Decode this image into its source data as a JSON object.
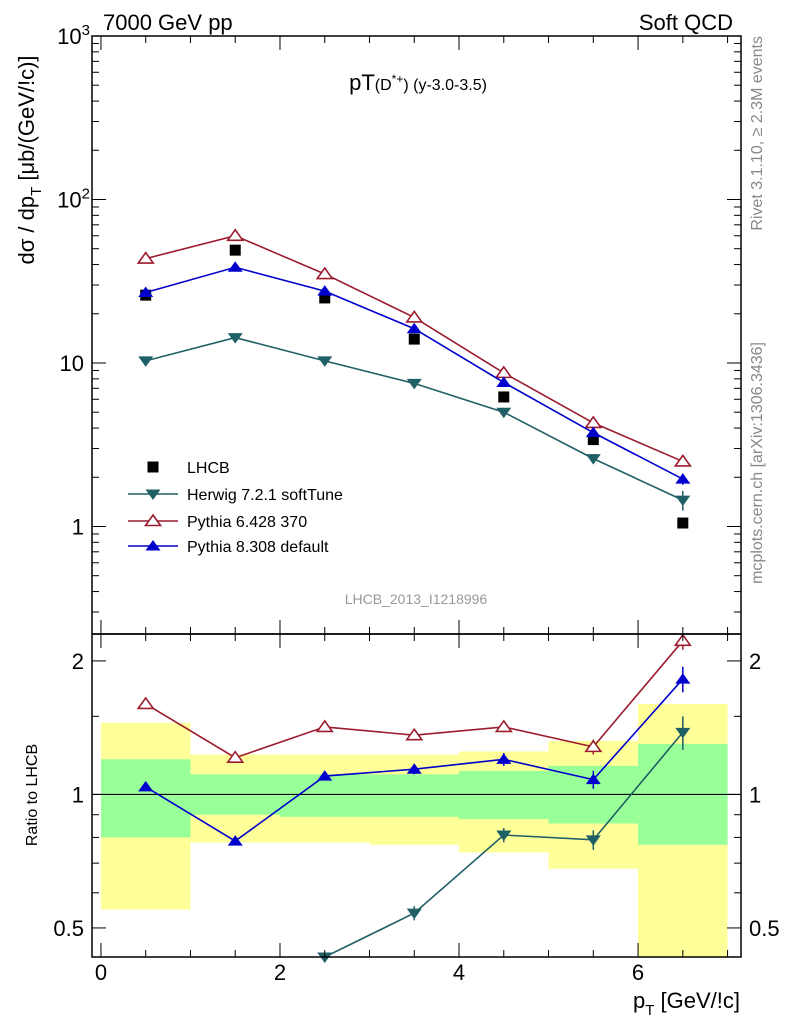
{
  "header": {
    "left": "7000 GeV pp",
    "right": "Soft QCD"
  },
  "side_labels": {
    "rivet": "Rivet 3.1.10, ≥ 2.3M events",
    "mcplots": "mcplots.cern.ch [arXiv:1306.3436]"
  },
  "chart_data": [
    {
      "type": "line",
      "title": "pT(D*+) (y-3.0-3.5)",
      "analysis_label": "LHCB_2013_I1218996",
      "xlabel": "p_T [GeV/c]",
      "ylabel": "dσ / dp_T [μb/(GeV/c)]",
      "log_y": true,
      "xlim": [
        -0.1,
        7.15
      ],
      "ylim": [
        0.22,
        1000
      ],
      "y_ticks": [
        {
          "value": 1,
          "label": "1"
        },
        {
          "value": 10,
          "label": "10"
        },
        {
          "value": 100,
          "label": "10",
          "sup": "2"
        },
        {
          "value": 1000,
          "label": "10",
          "sup": "3"
        }
      ],
      "legend_position": "middle-left",
      "series": [
        {
          "name": "LHCB",
          "style": "data",
          "marker": "square",
          "color": "#000000",
          "x": [
            0.5,
            1.5,
            2.5,
            3.5,
            4.5,
            5.5,
            6.5
          ],
          "y": [
            26,
            49,
            25,
            14,
            6.2,
            3.4,
            1.05
          ]
        },
        {
          "name": "Herwig 7.2.1 softTune",
          "style": "line",
          "marker": "triangle-down",
          "color": "#1f5f66",
          "x": [
            0.5,
            1.5,
            2.5,
            3.5,
            4.5,
            5.5,
            6.5
          ],
          "y": [
            10.3,
            14.3,
            10.3,
            7.5,
            5.0,
            2.6,
            1.45
          ]
        },
        {
          "name": "Pythia 6.428 370",
          "style": "line",
          "marker": "triangle-open",
          "color": "#9b1c2e",
          "x": [
            0.5,
            1.5,
            2.5,
            3.5,
            4.5,
            5.5,
            6.5
          ],
          "y": [
            43.5,
            60,
            35,
            19,
            8.7,
            4.3,
            2.5
          ]
        },
        {
          "name": "Pythia 8.308 default",
          "style": "line",
          "marker": "triangle-up",
          "color": "#0000cc",
          "x": [
            0.5,
            1.5,
            2.5,
            3.5,
            4.5,
            5.5,
            6.5
          ],
          "y": [
            27,
            38.5,
            27.5,
            16.2,
            7.6,
            3.75,
            1.95
          ]
        }
      ]
    },
    {
      "type": "line",
      "ylabel": "Ratio to LHCB",
      "xlabel": "p_T [GeV/c]",
      "log_y": true,
      "xlim": [
        -0.1,
        7.15
      ],
      "ylim": [
        0.43,
        2.3
      ],
      "x_ticks": [
        0,
        2,
        4,
        6
      ],
      "y_ticks": [
        {
          "value": 0.5,
          "label": "0.5"
        },
        {
          "value": 1,
          "label": "1"
        },
        {
          "value": 2,
          "label": "2"
        }
      ],
      "uncertainty_bands": {
        "bins": [
          [
            0,
            1
          ],
          [
            1,
            2
          ],
          [
            2,
            3
          ],
          [
            3,
            4
          ],
          [
            4,
            5
          ],
          [
            5,
            6
          ],
          [
            6,
            7
          ]
        ],
        "inner": [
          [
            0.8,
            1.2
          ],
          [
            0.9,
            1.11
          ],
          [
            0.89,
            1.11
          ],
          [
            0.89,
            1.11
          ],
          [
            0.88,
            1.13
          ],
          [
            0.86,
            1.16
          ],
          [
            0.77,
            1.3
          ]
        ],
        "outer": [
          [
            0.55,
            1.45
          ],
          [
            0.78,
            1.23
          ],
          [
            0.78,
            1.23
          ],
          [
            0.77,
            1.23
          ],
          [
            0.74,
            1.25
          ],
          [
            0.68,
            1.32
          ],
          [
            0.42,
            1.6
          ]
        ],
        "inner_color": "#99ff99",
        "outer_color": "#ffff99"
      },
      "series": [
        {
          "name": "Herwig 7.2.1 softTune",
          "marker": "triangle-down",
          "color": "#1f5f66",
          "x": [
            2.5,
            3.5,
            4.5,
            5.5,
            6.5
          ],
          "y": [
            0.415,
            0.54,
            0.81,
            0.79,
            1.38
          ],
          "err": [
            0,
            0.02,
            0.03,
            0.04,
            0.12
          ]
        },
        {
          "name": "Pythia 6.428 370",
          "marker": "triangle-open",
          "color": "#9b1c2e",
          "x": [
            0.5,
            1.5,
            2.5,
            3.5,
            4.5,
            5.5,
            6.5
          ],
          "y": [
            1.6,
            1.21,
            1.42,
            1.36,
            1.42,
            1.28,
            2.22
          ],
          "err": [
            0,
            0,
            0,
            0,
            0.04,
            0.05,
            0.1
          ]
        },
        {
          "name": "Pythia 8.308 default",
          "marker": "triangle-up",
          "color": "#0000cc",
          "x": [
            0.5,
            1.5,
            2.5,
            3.5,
            4.5,
            5.5,
            6.5
          ],
          "y": [
            1.04,
            0.785,
            1.1,
            1.14,
            1.2,
            1.08,
            1.82
          ],
          "err": [
            0,
            0,
            0,
            0.03,
            0.04,
            0.05,
            0.12
          ]
        }
      ]
    }
  ]
}
